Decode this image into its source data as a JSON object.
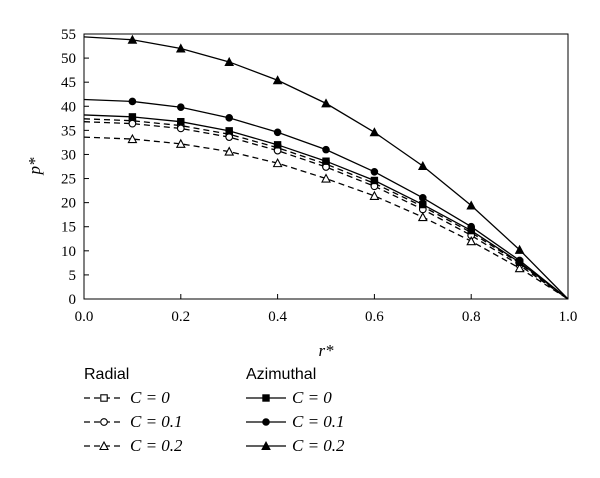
{
  "chart_data": {
    "type": "line",
    "xlabel": "r*",
    "ylabel": "p*",
    "xlim": [
      0.0,
      1.0
    ],
    "ylim": [
      0,
      55
    ],
    "xticks": [
      "0.0",
      "0.2",
      "0.4",
      "0.6",
      "0.8",
      "1.0"
    ],
    "yticks": [
      "0",
      "5",
      "10",
      "15",
      "20",
      "25",
      "30",
      "35",
      "40",
      "45",
      "50",
      "55"
    ],
    "x": [
      0.0,
      0.1,
      0.2,
      0.3,
      0.4,
      0.5,
      0.6,
      0.7,
      0.8,
      0.9,
      1.0
    ],
    "legend": [
      {
        "title": "Radial",
        "entries": [
          "C = 0",
          "C = 0.1",
          "C = 0.2"
        ]
      },
      {
        "title": "Azimuthal",
        "entries": [
          "C = 0",
          "C = 0.1",
          "C = 0.2"
        ]
      }
    ],
    "series": [
      {
        "group": "Radial",
        "label": "C = 0",
        "style": "dashed",
        "marker": "square-open",
        "values": [
          37.4,
          37.0,
          36.0,
          34.2,
          31.4,
          28.0,
          24.0,
          19.2,
          13.8,
          7.4,
          0.0
        ]
      },
      {
        "group": "Radial",
        "label": "C = 0.1",
        "style": "dashed",
        "marker": "circle-open",
        "values": [
          36.8,
          36.4,
          35.4,
          33.6,
          30.8,
          27.4,
          23.4,
          18.6,
          13.2,
          7.0,
          0.0
        ]
      },
      {
        "group": "Radial",
        "label": "C = 0.2",
        "style": "dashed",
        "marker": "triangle-open",
        "values": [
          33.6,
          33.2,
          32.2,
          30.6,
          28.2,
          25.0,
          21.4,
          17.0,
          12.0,
          6.4,
          0.0
        ]
      },
      {
        "group": "Azimuthal",
        "label": "C = 0",
        "style": "solid",
        "marker": "square-filled",
        "values": [
          38.2,
          37.8,
          36.8,
          34.9,
          32.0,
          28.6,
          24.6,
          19.6,
          14.2,
          7.6,
          0.0
        ]
      },
      {
        "group": "Azimuthal",
        "label": "C = 0.1",
        "style": "solid",
        "marker": "circle-filled",
        "values": [
          41.4,
          41.0,
          39.8,
          37.6,
          34.6,
          31.0,
          26.4,
          21.0,
          15.0,
          8.0,
          0.0
        ]
      },
      {
        "group": "Azimuthal",
        "label": "C = 0.2",
        "style": "solid",
        "marker": "triangle-filled",
        "values": [
          54.4,
          53.8,
          52.0,
          49.2,
          45.4,
          40.6,
          34.6,
          27.6,
          19.4,
          10.2,
          0.0
        ]
      }
    ],
    "grid": false,
    "legend_placement": "bottom"
  }
}
